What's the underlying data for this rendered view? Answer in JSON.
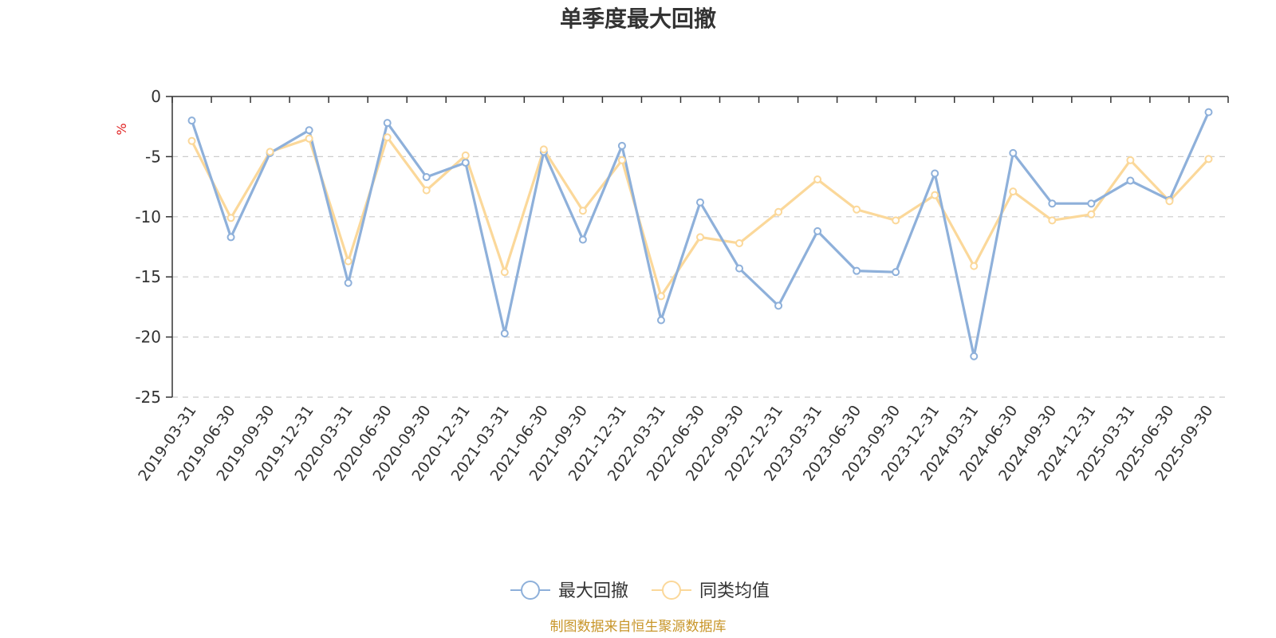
{
  "chart_data": {
    "type": "line",
    "title": "单季度最大回撤",
    "ylabel": "%",
    "ylim": [
      -25,
      0
    ],
    "yticks": [
      0,
      -5,
      -10,
      -15,
      -20,
      -25
    ],
    "grid": true,
    "legend_position": "bottom",
    "categories": [
      "2019-03-31",
      "2019-06-30",
      "2019-09-30",
      "2019-12-31",
      "2020-03-31",
      "2020-06-30",
      "2020-09-30",
      "2020-12-31",
      "2021-03-31",
      "2021-06-30",
      "2021-09-30",
      "2021-12-31",
      "2022-03-31",
      "2022-06-30",
      "2022-09-30",
      "2022-12-31",
      "2023-03-31",
      "2023-06-30",
      "2023-09-30",
      "2023-12-31",
      "2024-03-31",
      "2024-06-30",
      "2024-09-30",
      "2024-12-31",
      "2025-03-31",
      "2025-06-30",
      "2025-09-30"
    ],
    "series": [
      {
        "name": "最大回撤",
        "color": "#8eb0da",
        "values": [
          -2.0,
          -11.7,
          -4.7,
          -2.8,
          -15.5,
          -2.2,
          -6.7,
          -5.5,
          -19.7,
          -4.6,
          -11.9,
          -4.1,
          -18.6,
          -8.8,
          -14.3,
          -17.4,
          -11.2,
          -14.5,
          -14.6,
          -6.4,
          -21.6,
          -4.7,
          -8.9,
          -8.9,
          -7.0,
          -8.6,
          -1.3
        ]
      },
      {
        "name": "同类均值",
        "color": "#fbd89a",
        "values": [
          -3.7,
          -10.1,
          -4.6,
          -3.5,
          -13.7,
          -3.4,
          -7.8,
          -4.9,
          -14.6,
          -4.4,
          -9.5,
          -5.3,
          -16.6,
          -11.7,
          -12.2,
          -9.6,
          -6.9,
          -9.4,
          -10.3,
          -8.2,
          -14.1,
          -7.9,
          -10.3,
          -9.8,
          -5.3,
          -8.7,
          -5.2
        ]
      }
    ]
  },
  "footer": {
    "source": "制图数据来自恒生聚源数据库"
  }
}
